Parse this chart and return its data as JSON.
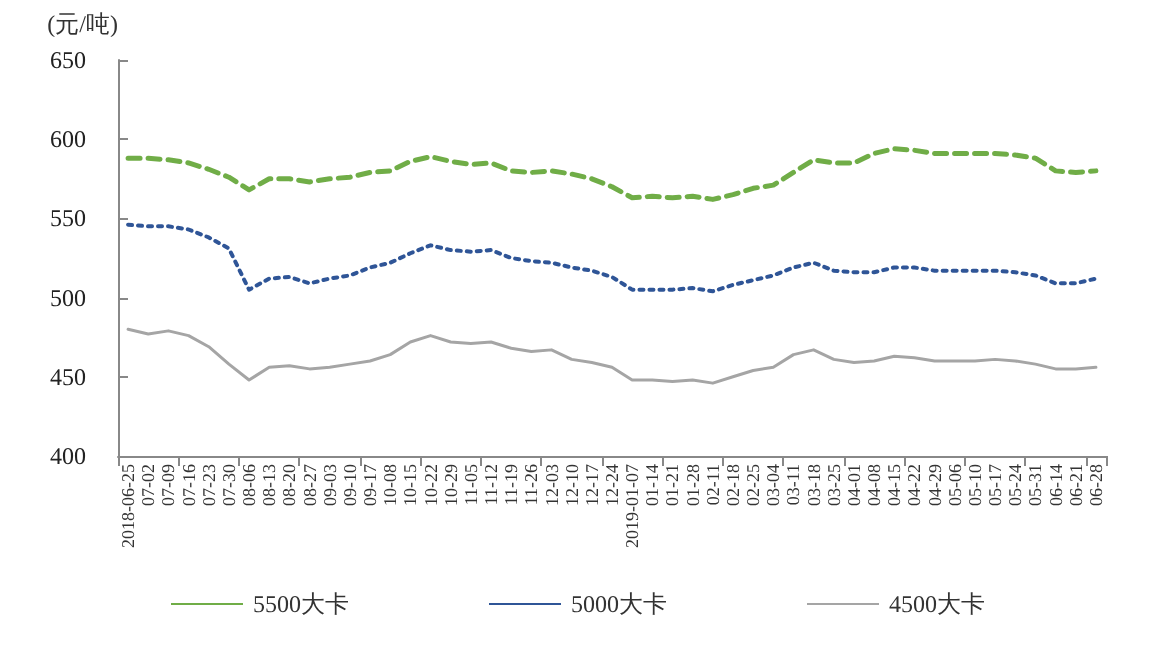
{
  "chart_data": {
    "type": "line",
    "ylabel": "(元/吨)",
    "categories": [
      "2018-06-25",
      "07-02",
      "07-09",
      "07-16",
      "07-23",
      "07-30",
      "08-06",
      "08-13",
      "08-20",
      "08-27",
      "09-03",
      "09-10",
      "09-17",
      "10-08",
      "10-15",
      "10-22",
      "10-29",
      "11-05",
      "11-12",
      "11-19",
      "11-26",
      "12-03",
      "12-10",
      "12-17",
      "12-24",
      "2019-01-07",
      "01-14",
      "01-21",
      "01-28",
      "02-11",
      "02-18",
      "02-25",
      "03-04",
      "03-11",
      "03-18",
      "03-25",
      "04-01",
      "04-08",
      "04-15",
      "04-22",
      "04-29",
      "05-06",
      "05-10",
      "05-17",
      "05-24",
      "05-31",
      "06-14",
      "06-21",
      "06-28"
    ],
    "series": [
      {
        "name": "5500大卡",
        "color": "#70ad47",
        "line_style": "dashed",
        "values": [
          588,
          588,
          587,
          585,
          581,
          576,
          568,
          575,
          575,
          573,
          575,
          576,
          579,
          580,
          586,
          589,
          586,
          584,
          585,
          580,
          579,
          580,
          578,
          575,
          570,
          563,
          564,
          563,
          564,
          562,
          565,
          569,
          571,
          579,
          587,
          585,
          585,
          591,
          594,
          593,
          591,
          591,
          591,
          591,
          590,
          588,
          580,
          579,
          580
        ]
      },
      {
        "name": "5000大卡",
        "color": "#2f5597",
        "line_style": "dotted",
        "values": [
          546,
          545,
          545,
          543,
          538,
          531,
          505,
          512,
          513,
          509,
          512,
          514,
          519,
          522,
          528,
          533,
          530,
          529,
          530,
          525,
          523,
          522,
          519,
          517,
          513,
          505,
          505,
          505,
          506,
          504,
          508,
          511,
          514,
          519,
          522,
          517,
          516,
          516,
          519,
          519,
          517,
          517,
          517,
          517,
          516,
          514,
          509,
          509,
          512
        ]
      },
      {
        "name": "4500大卡",
        "color": "#a5a5a5",
        "line_style": "solid",
        "values": [
          480,
          477,
          479,
          476,
          469,
          458,
          448,
          456,
          457,
          455,
          456,
          458,
          460,
          464,
          472,
          476,
          472,
          471,
          472,
          468,
          466,
          467,
          461,
          459,
          456,
          448,
          448,
          447,
          448,
          446,
          450,
          454,
          456,
          464,
          467,
          461,
          459,
          460,
          463,
          462,
          460,
          460,
          460,
          461,
          460,
          458,
          455,
          455,
          456
        ]
      }
    ],
    "ylim": [
      400,
      650
    ],
    "yticks": [
      400,
      450,
      500,
      550,
      600,
      650
    ],
    "grid": false,
    "legend": "bottom",
    "marker": "none"
  }
}
